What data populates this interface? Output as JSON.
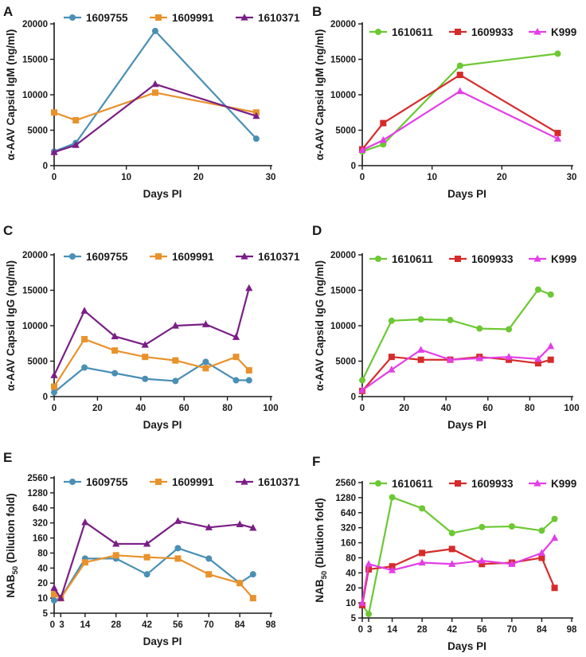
{
  "colors": {
    "1609755": "#4a8fb5",
    "1609991": "#e8922c",
    "1610371": "#7a1e86",
    "1610611": "#6cc833",
    "1609933": "#d62b2b",
    "K999": "#e33fe6",
    "axis": "#1a1a1a"
  },
  "chart_data": [
    {
      "id": "A",
      "letter": "A",
      "type": "line",
      "xlabel": "Days PI",
      "ylabel": "α-AAV Capsid IgM (ng/ml)",
      "xlim": [
        0,
        30
      ],
      "ylim": [
        0,
        20000
      ],
      "yscale": "linear",
      "xticks": [
        0,
        10,
        20,
        30
      ],
      "xtick_labels": [
        "0",
        "10",
        "20",
        "30"
      ],
      "yticks": [
        0,
        5000,
        10000,
        15000,
        20000
      ],
      "ytick_labels": [
        "0",
        "5000",
        "10000",
        "15000",
        "20000"
      ],
      "series": [
        {
          "name": "1609755",
          "color": "#4a8fb5",
          "marker": "circle",
          "x": [
            0,
            3,
            14,
            28
          ],
          "y": [
            2000,
            3200,
            19000,
            3800
          ]
        },
        {
          "name": "1609991",
          "color": "#e8922c",
          "marker": "square",
          "x": [
            0,
            3,
            14,
            28
          ],
          "y": [
            7500,
            6400,
            10300,
            7500
          ]
        },
        {
          "name": "1610371",
          "color": "#7a1e86",
          "marker": "triangle",
          "x": [
            0,
            3,
            14,
            28
          ],
          "y": [
            1900,
            2900,
            11500,
            7000
          ]
        }
      ]
    },
    {
      "id": "B",
      "letter": "B",
      "type": "line",
      "xlabel": "Days PI",
      "ylabel": "α-AAV Capsid IgM (ng/ml)",
      "xlim": [
        0,
        30
      ],
      "ylim": [
        0,
        20000
      ],
      "yscale": "linear",
      "xticks": [
        0,
        10,
        20,
        30
      ],
      "xtick_labels": [
        "0",
        "10",
        "20",
        "30"
      ],
      "yticks": [
        0,
        5000,
        10000,
        15000,
        20000
      ],
      "ytick_labels": [
        "0",
        "5000",
        "10000",
        "15000",
        "20000"
      ],
      "series": [
        {
          "name": "1610611",
          "color": "#6cc833",
          "marker": "circle",
          "x": [
            0,
            3,
            14,
            28
          ],
          "y": [
            2000,
            3000,
            14100,
            15800
          ]
        },
        {
          "name": "1609933",
          "color": "#d62b2b",
          "marker": "square",
          "x": [
            0,
            3,
            14,
            28
          ],
          "y": [
            2300,
            6000,
            12800,
            4600
          ]
        },
        {
          "name": "K999",
          "color": "#e33fe6",
          "marker": "triangle",
          "x": [
            0,
            3,
            14,
            28
          ],
          "y": [
            2200,
            3600,
            10500,
            3800
          ]
        }
      ]
    },
    {
      "id": "C",
      "letter": "C",
      "type": "line",
      "xlabel": "Days PI",
      "ylabel": "α-AAV Capsid IgG (ng/ml)",
      "xlim": [
        0,
        100
      ],
      "ylim": [
        0,
        20000
      ],
      "yscale": "linear",
      "xticks": [
        0,
        20,
        40,
        60,
        80,
        100
      ],
      "xtick_labels": [
        "0",
        "20",
        "40",
        "60",
        "80",
        "100"
      ],
      "yticks": [
        0,
        5000,
        10000,
        15000,
        20000
      ],
      "ytick_labels": [
        "0",
        "5000",
        "10000",
        "15000",
        "20000"
      ],
      "series": [
        {
          "name": "1609755",
          "color": "#4a8fb5",
          "marker": "circle",
          "x": [
            0,
            14,
            28,
            42,
            56,
            70,
            84,
            90
          ],
          "y": [
            600,
            4100,
            3300,
            2500,
            2200,
            4900,
            2300,
            2300
          ]
        },
        {
          "name": "1609991",
          "color": "#e8922c",
          "marker": "square",
          "x": [
            0,
            14,
            28,
            42,
            56,
            70,
            84,
            90
          ],
          "y": [
            1400,
            8100,
            6500,
            5600,
            5100,
            4000,
            5600,
            3700
          ]
        },
        {
          "name": "1610371",
          "color": "#7a1e86",
          "marker": "triangle",
          "x": [
            0,
            14,
            28,
            42,
            56,
            70,
            84,
            90
          ],
          "y": [
            3000,
            12100,
            8500,
            7300,
            10000,
            10200,
            8400,
            15300
          ]
        }
      ]
    },
    {
      "id": "D",
      "letter": "D",
      "type": "line",
      "xlabel": "Days PI",
      "ylabel": "α-AAV Capsid IgG (ng/ml)",
      "xlim": [
        0,
        100
      ],
      "ylim": [
        0,
        20000
      ],
      "yscale": "linear",
      "xticks": [
        0,
        20,
        40,
        60,
        80,
        100
      ],
      "xtick_labels": [
        "0",
        "20",
        "40",
        "60",
        "80",
        "100"
      ],
      "yticks": [
        0,
        5000,
        10000,
        15000,
        20000
      ],
      "ytick_labels": [
        "0",
        "5000",
        "10000",
        "15000",
        "20000"
      ],
      "series": [
        {
          "name": "1610611",
          "color": "#6cc833",
          "marker": "circle",
          "x": [
            0,
            14,
            28,
            42,
            56,
            70,
            84,
            90
          ],
          "y": [
            2300,
            10700,
            10900,
            10800,
            9600,
            9500,
            15100,
            14400
          ]
        },
        {
          "name": "1609933",
          "color": "#d62b2b",
          "marker": "square",
          "x": [
            0,
            14,
            28,
            42,
            56,
            70,
            84,
            90
          ],
          "y": [
            800,
            5600,
            5200,
            5200,
            5600,
            5200,
            4700,
            5200
          ]
        },
        {
          "name": "K999",
          "color": "#e33fe6",
          "marker": "triangle",
          "x": [
            0,
            14,
            28,
            42,
            56,
            70,
            84,
            90
          ],
          "y": [
            900,
            3800,
            6600,
            5200,
            5400,
            5600,
            5300,
            7100
          ]
        }
      ]
    },
    {
      "id": "E",
      "letter": "E",
      "type": "line",
      "xlabel": "Days PI",
      "ylabel": "NAB50 (Dilution fold)",
      "ylabel_main": "NAB",
      "ylabel_sub": "50",
      "ylabel_rest": " (Dilution fold)",
      "xlim": [
        0,
        98
      ],
      "ylim": [
        5,
        2560
      ],
      "yscale": "log2",
      "xticks": [
        0,
        3,
        14,
        28,
        42,
        56,
        70,
        84,
        98
      ],
      "xtick_labels": [
        "0",
        "3",
        "14",
        "28",
        "42",
        "56",
        "70",
        "84",
        "98"
      ],
      "yticks": [
        5,
        10,
        20,
        40,
        80,
        160,
        320,
        640,
        1280,
        2560
      ],
      "ytick_labels": [
        "5",
        "10",
        "20",
        "40",
        "80",
        "160",
        "320",
        "640",
        "1280",
        "2560"
      ],
      "series": [
        {
          "name": "1609755",
          "color": "#4a8fb5",
          "marker": "circle",
          "x": [
            0,
            3,
            14,
            28,
            42,
            56,
            70,
            84,
            90
          ],
          "y": [
            9,
            10,
            62,
            62,
            30,
            100,
            62,
            20,
            30
          ]
        },
        {
          "name": "1609991",
          "color": "#e8922c",
          "marker": "square",
          "x": [
            0,
            3,
            14,
            28,
            42,
            56,
            70,
            84,
            90
          ],
          "y": [
            12,
            10,
            52,
            72,
            66,
            62,
            30,
            20,
            10
          ]
        },
        {
          "name": "1610371",
          "color": "#7a1e86",
          "marker": "triangle",
          "x": [
            0,
            3,
            14,
            28,
            42,
            56,
            70,
            84,
            90
          ],
          "y": [
            16,
            10,
            330,
            122,
            122,
            350,
            260,
            300,
            255
          ]
        }
      ]
    },
    {
      "id": "F",
      "letter": "F",
      "type": "line",
      "xlabel": "Days PI",
      "ylabel": "NAB50 (Dilution fold)",
      "ylabel_main": "NAB",
      "ylabel_sub": "50",
      "ylabel_rest": " (Dilution fold)",
      "xlim": [
        0,
        98
      ],
      "ylim": [
        5,
        2560
      ],
      "yscale": "log2",
      "xticks": [
        0,
        3,
        14,
        28,
        42,
        56,
        70,
        84,
        98
      ],
      "xtick_labels": [
        "0",
        "3",
        "14",
        "28",
        "42",
        "56",
        "70",
        "84",
        "98"
      ],
      "yticks": [
        5,
        10,
        20,
        40,
        80,
        160,
        320,
        640,
        1280,
        2560
      ],
      "ytick_labels": [
        "5",
        "10",
        "20",
        "40",
        "80",
        "160",
        "320",
        "640",
        "1280",
        "2560"
      ],
      "series": [
        {
          "name": "1610611",
          "color": "#6cc833",
          "marker": "circle",
          "x": [
            0,
            3,
            14,
            28,
            42,
            56,
            70,
            84,
            90
          ],
          "y": [
            9,
            6,
            1300,
            780,
            250,
            330,
            340,
            280,
            480
          ]
        },
        {
          "name": "1609933",
          "color": "#d62b2b",
          "marker": "square",
          "x": [
            0,
            3,
            14,
            28,
            42,
            56,
            70,
            84,
            90
          ],
          "y": [
            9,
            47,
            54,
            100,
            120,
            60,
            64,
            80,
            20
          ]
        },
        {
          "name": "K999",
          "color": "#e33fe6",
          "marker": "triangle",
          "x": [
            0,
            3,
            14,
            28,
            42,
            56,
            70,
            84,
            90
          ],
          "y": [
            10,
            60,
            45,
            64,
            60,
            70,
            60,
            100,
            200
          ]
        }
      ]
    }
  ]
}
